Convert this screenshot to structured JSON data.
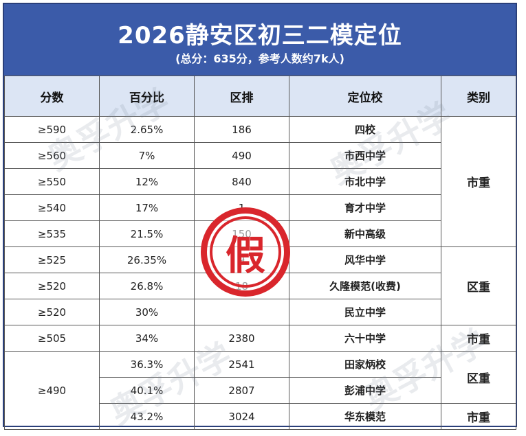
{
  "header": {
    "title": "2026静安区初三二模定位",
    "subtitle": "(总分：635分，参考人数约7k人)"
  },
  "table": {
    "columns": [
      "分数",
      "百分比",
      "区排",
      "定位校",
      "类别"
    ],
    "rows": [
      {
        "score": "≥590",
        "percent": "2.65%",
        "rank": "186",
        "school": "四校"
      },
      {
        "score": "≥560",
        "percent": "7%",
        "rank": "490",
        "school": "市西中学"
      },
      {
        "score": "≥550",
        "percent": "12%",
        "rank": "840",
        "school": "市北中学"
      },
      {
        "score": "≥540",
        "percent": "17%",
        "rank": "1",
        "school": "育才中学"
      },
      {
        "score": "≥535",
        "percent": "21.5%",
        "rank": "150",
        "school": "新中高级"
      },
      {
        "score": "≥525",
        "percent": "26.35%",
        "rank": "9",
        "school": "风华中学"
      },
      {
        "score": "≥520",
        "percent": "26.8%",
        "rank": "18",
        "school": "久隆模范(收费)"
      },
      {
        "score": "≥520",
        "percent": "30%",
        "rank": "",
        "school": "民立中学"
      },
      {
        "score": "≥505",
        "percent": "34%",
        "rank": "2380",
        "school": "六十中学"
      },
      {
        "score": "",
        "percent": "36.3%",
        "rank": "2541",
        "school": "田家炳校"
      },
      {
        "score": "≥490",
        "percent": "40.1%",
        "rank": "2807",
        "school": "彭浦中学"
      },
      {
        "score": "",
        "percent": "43.2%",
        "rank": "3024",
        "school": "华东模范"
      }
    ],
    "categories": {
      "group1": "市重",
      "group2": "区重",
      "group3": "市重",
      "group4": "区重",
      "group5": "市重"
    }
  },
  "stamp": {
    "text": "假",
    "color": "#d9262c"
  },
  "watermark": {
    "text": "奥孚升学"
  }
}
